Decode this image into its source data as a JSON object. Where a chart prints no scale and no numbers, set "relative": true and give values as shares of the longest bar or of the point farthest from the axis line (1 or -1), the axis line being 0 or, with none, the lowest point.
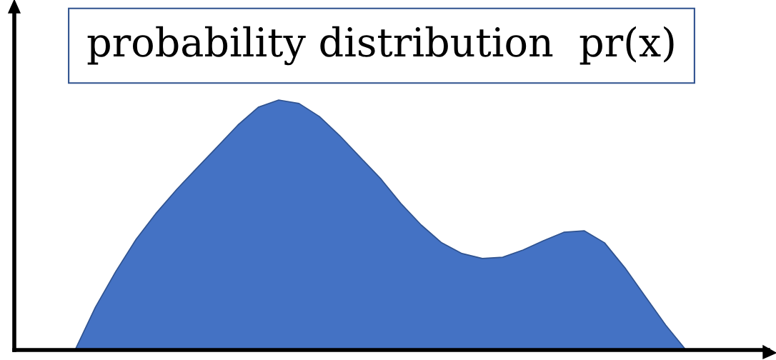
{
  "chart_data": {
    "type": "area",
    "title": "probability distribution  pr(x)",
    "relative": true,
    "categories": [
      null,
      null,
      null,
      null,
      null,
      null,
      null,
      null,
      null,
      null,
      null,
      null,
      null,
      null,
      null,
      null,
      null,
      null,
      null,
      null,
      null,
      null,
      null,
      null,
      null,
      null,
      null,
      null,
      null,
      null,
      null
    ],
    "series": [
      {
        "color": "#4472c4",
        "values": [
          0,
          0.171,
          0.314,
          0.443,
          0.549,
          0.643,
          0.729,
          0.814,
          0.9,
          0.971,
          1,
          0.986,
          0.934,
          0.857,
          0.771,
          0.686,
          0.586,
          0.5,
          0.429,
          0.386,
          0.366,
          0.371,
          0.4,
          0.437,
          0.471,
          0.477,
          0.429,
          0.329,
          0.214,
          0.1,
          0
        ]
      }
    ],
    "legend": false
  }
}
